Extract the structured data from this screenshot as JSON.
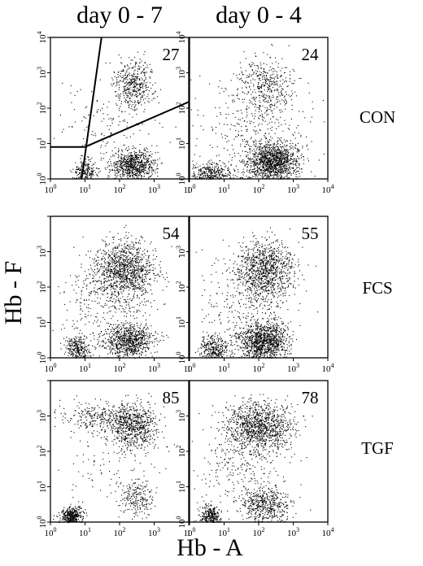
{
  "chart_data": {
    "type": "scatter",
    "xlabel": "Hb - A",
    "ylabel": "Hb - F",
    "x_scale": "log",
    "y_scale": "log",
    "xlim": [
      1,
      10000
    ],
    "ylim": [
      1,
      10000
    ],
    "columns": [
      {
        "id": "d07",
        "title": "day 0 - 7"
      },
      {
        "id": "d04",
        "title": "day 0 - 4"
      }
    ],
    "rows": [
      {
        "id": "con",
        "label": "CON"
      },
      {
        "id": "fcs",
        "label": "FCS"
      },
      {
        "id": "tgf",
        "label": "TGF"
      }
    ],
    "tick_labels": {
      "y": [
        {
          "base": "10",
          "exp": "0"
        },
        {
          "base": "10",
          "exp": "1"
        },
        {
          "base": "10",
          "exp": "2"
        },
        {
          "base": "10",
          "exp": "3"
        },
        {
          "base": "10",
          "exp": "4"
        }
      ],
      "x_full": [
        {
          "base": "10",
          "exp": "0"
        },
        {
          "base": "10",
          "exp": "1"
        },
        {
          "base": "10",
          "exp": "2"
        },
        {
          "base": "10",
          "exp": "3"
        },
        {
          "base": "10",
          "exp": "4"
        }
      ],
      "x_trunc_last": "1"
    },
    "panels": [
      {
        "row": "con",
        "col": "d07",
        "percent": "27",
        "gates": true,
        "y_top_tick": true,
        "x_last_tick": "trunc",
        "clusters": [
          {
            "cx": 10,
            "cy": 1.6,
            "sx": 0.18,
            "sy": 0.17,
            "n": 240
          },
          {
            "cx": 250,
            "cy": 2.5,
            "sx": 0.32,
            "sy": 0.22,
            "n": 760
          },
          {
            "cx": 250,
            "cy": 500,
            "sx": 0.3,
            "sy": 0.35,
            "n": 420
          },
          {
            "cx": 60,
            "cy": 40,
            "sx": 0.75,
            "sy": 0.65,
            "n": 160
          }
        ]
      },
      {
        "row": "con",
        "col": "d04",
        "percent": "24",
        "gates": false,
        "y_top_tick": true,
        "x_last_tick": "full",
        "clusters": [
          {
            "cx": 4,
            "cy": 1.5,
            "sx": 0.3,
            "sy": 0.15,
            "n": 360
          },
          {
            "cx": 250,
            "cy": 3,
            "sx": 0.38,
            "sy": 0.28,
            "n": 1300
          },
          {
            "cx": 150,
            "cy": 500,
            "sx": 0.38,
            "sy": 0.4,
            "n": 380
          },
          {
            "cx": 60,
            "cy": 40,
            "sx": 0.8,
            "sy": 0.7,
            "n": 340
          }
        ]
      },
      {
        "row": "fcs",
        "col": "d07",
        "percent": "54",
        "gates": false,
        "y_top_tick": false,
        "x_last_tick": "trunc",
        "clusters": [
          {
            "cx": 6,
            "cy": 1.8,
            "sx": 0.18,
            "sy": 0.2,
            "n": 300
          },
          {
            "cx": 180,
            "cy": 3,
            "sx": 0.38,
            "sy": 0.25,
            "n": 800
          },
          {
            "cx": 130,
            "cy": 300,
            "sx": 0.45,
            "sy": 0.42,
            "n": 1100
          },
          {
            "cx": 40,
            "cy": 40,
            "sx": 0.7,
            "sy": 0.7,
            "n": 300
          }
        ]
      },
      {
        "row": "fcs",
        "col": "d04",
        "percent": "55",
        "gates": false,
        "y_top_tick": false,
        "x_last_tick": "full",
        "clusters": [
          {
            "cx": 5,
            "cy": 1.8,
            "sx": 0.2,
            "sy": 0.2,
            "n": 320
          },
          {
            "cx": 130,
            "cy": 3,
            "sx": 0.35,
            "sy": 0.28,
            "n": 1150
          },
          {
            "cx": 150,
            "cy": 300,
            "sx": 0.42,
            "sy": 0.42,
            "n": 1000
          },
          {
            "cx": 40,
            "cy": 40,
            "sx": 0.7,
            "sy": 0.7,
            "n": 300
          }
        ]
      },
      {
        "row": "tgf",
        "col": "d07",
        "percent": "85",
        "gates": false,
        "y_top_tick": false,
        "x_last_tick": "trunc",
        "clusters": [
          {
            "cx": 4,
            "cy": 1.4,
            "sx": 0.15,
            "sy": 0.15,
            "n": 500
          },
          {
            "cx": 300,
            "cy": 5,
            "sx": 0.25,
            "sy": 0.25,
            "n": 220
          },
          {
            "cx": 250,
            "cy": 500,
            "sx": 0.35,
            "sy": 0.32,
            "n": 650
          },
          {
            "cx": 30,
            "cy": 900,
            "sx": 0.55,
            "sy": 0.2,
            "n": 320
          },
          {
            "cx": 60,
            "cy": 60,
            "sx": 0.7,
            "sy": 0.6,
            "n": 90
          }
        ]
      },
      {
        "row": "tgf",
        "col": "d04",
        "percent": "78",
        "gates": false,
        "y_top_tick": false,
        "x_last_tick": "full",
        "clusters": [
          {
            "cx": 4,
            "cy": 1.5,
            "sx": 0.15,
            "sy": 0.15,
            "n": 320
          },
          {
            "cx": 150,
            "cy": 3,
            "sx": 0.35,
            "sy": 0.28,
            "n": 520
          },
          {
            "cx": 100,
            "cy": 500,
            "sx": 0.48,
            "sy": 0.35,
            "n": 1100
          },
          {
            "cx": 30,
            "cy": 50,
            "sx": 0.7,
            "sy": 0.6,
            "n": 250
          }
        ]
      }
    ],
    "gate_lines": [
      {
        "from": [
          1,
          8
        ],
        "to": [
          10,
          8
        ]
      },
      {
        "from": [
          10,
          8
        ],
        "to": [
          10000,
          150
        ]
      },
      {
        "from": [
          8,
          1
        ],
        "to": [
          30,
          10000
        ]
      }
    ]
  }
}
